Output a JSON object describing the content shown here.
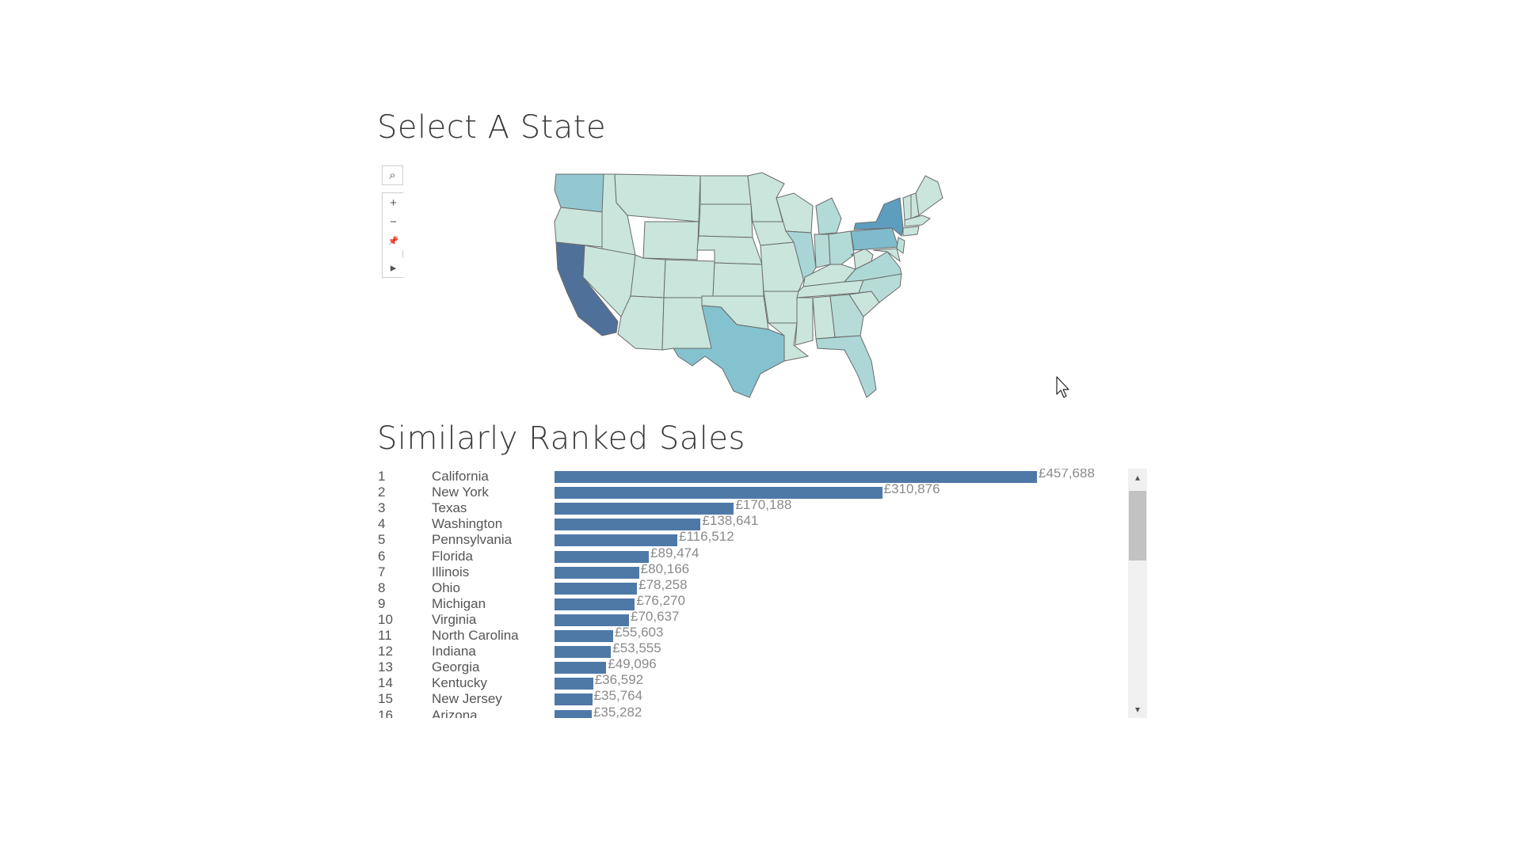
{
  "map_section": {
    "title": "Select A State",
    "tools": {
      "search_icon": "⌕",
      "zoom_in_icon": "+",
      "zoom_out_icon": "−",
      "pin_icon": "📌",
      "play_icon": "▸"
    }
  },
  "sales_section": {
    "title": "Similarly Ranked Sales"
  },
  "chart_data": {
    "type": "bar",
    "orientation": "horizontal",
    "title": "Similarly Ranked Sales",
    "categories": [
      "California",
      "New York",
      "Texas",
      "Washington",
      "Pennsylvania",
      "Florida",
      "Illinois",
      "Ohio",
      "Michigan",
      "Virginia",
      "North Carolina",
      "Indiana",
      "Georgia",
      "Kentucky",
      "New Jersey",
      "Arizona"
    ],
    "ranks": [
      "1",
      "2",
      "3",
      "4",
      "5",
      "6",
      "7",
      "8",
      "9",
      "10",
      "11",
      "12",
      "13",
      "14",
      "15",
      "16"
    ],
    "values": [
      457688,
      310876,
      170188,
      138641,
      116512,
      89474,
      80166,
      78258,
      76270,
      70637,
      55603,
      53555,
      49096,
      36592,
      35764,
      35282
    ],
    "labels": [
      "£457,688",
      "£310,876",
      "£170,188",
      "£138,641",
      "£116,512",
      "£89,474",
      "£80,166",
      "£78,258",
      "£76,270",
      "£70,637",
      "£55,603",
      "£53,555",
      "£49,096",
      "£36,592",
      "£35,764",
      "£35,282"
    ],
    "xlim": [
      0,
      457688
    ],
    "bar_color": "#4e79a7"
  },
  "colors": {
    "bar": "#4e79a7",
    "map_low": "#c9e5dc",
    "map_high": "#4a6e9a",
    "label": "#8a8a8a"
  }
}
